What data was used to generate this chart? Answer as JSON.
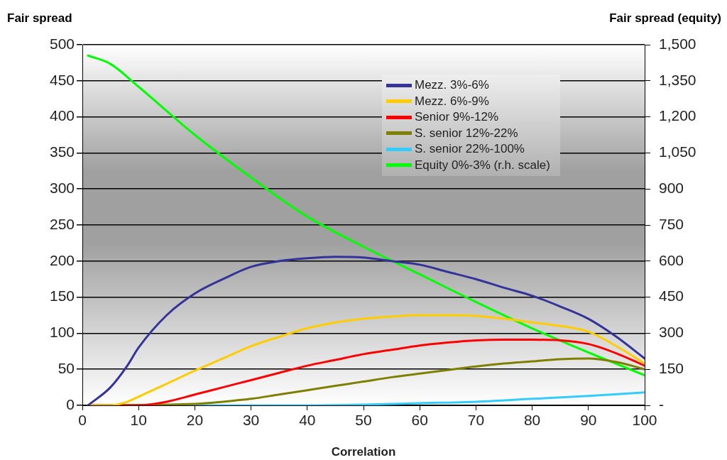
{
  "chart_data": {
    "type": "line",
    "xlabel": "Correlation",
    "ylabel": "Fair spread",
    "y2label": "Fair spread (equity)",
    "xlim": [
      0,
      100
    ],
    "xticks": [
      0,
      10,
      20,
      30,
      40,
      50,
      60,
      70,
      80,
      90,
      100
    ],
    "ylim": [
      0,
      500
    ],
    "yticks": [
      0,
      50,
      100,
      150,
      200,
      250,
      300,
      350,
      400,
      450,
      500
    ],
    "y2lim": [
      0,
      1500
    ],
    "y2ticks": [
      {
        "value": 0,
        "label": "-"
      },
      {
        "value": 150,
        "label": "150"
      },
      {
        "value": 300,
        "label": "300"
      },
      {
        "value": 450,
        "label": "450"
      },
      {
        "value": 600,
        "label": "600"
      },
      {
        "value": 750,
        "label": "750"
      },
      {
        "value": 900,
        "label": "900"
      },
      {
        "value": 1050,
        "label": "1,050"
      },
      {
        "value": 1200,
        "label": "1,200"
      },
      {
        "value": 1350,
        "label": "1,350"
      },
      {
        "value": 1500,
        "label": "1,500"
      }
    ],
    "grid": "y",
    "legend": "top right",
    "marker": "none",
    "line_style": "solid",
    "series": [
      {
        "name": "Mezz. 3%-6%",
        "color": "#333399",
        "x": [
          1,
          5,
          8,
          10,
          15,
          20,
          25,
          30,
          35,
          40,
          45,
          50,
          55,
          60,
          65,
          70,
          75,
          80,
          85,
          90,
          95,
          100
        ],
        "values": [
          0,
          25,
          55,
          80,
          125,
          155,
          175,
          192,
          200,
          204,
          206,
          205,
          200,
          195,
          185,
          175,
          163,
          152,
          137,
          120,
          95,
          65
        ]
      },
      {
        "name": "Mezz. 6%-9%",
        "color": "#ffcc00",
        "x": [
          1,
          5,
          8,
          10,
          15,
          20,
          25,
          30,
          35,
          40,
          45,
          50,
          55,
          60,
          65,
          70,
          75,
          80,
          85,
          90,
          95,
          100
        ],
        "values": [
          0,
          0,
          5,
          12,
          30,
          48,
          65,
          82,
          95,
          107,
          115,
          120,
          123,
          125,
          125,
          124,
          120,
          115,
          110,
          102,
          82,
          58
        ]
      },
      {
        "name": "Senior 9%-12%",
        "color": "#ff0000",
        "x": [
          1,
          10,
          15,
          20,
          25,
          30,
          35,
          40,
          45,
          50,
          55,
          60,
          65,
          70,
          75,
          80,
          85,
          90,
          95,
          100
        ],
        "values": [
          0,
          0,
          5,
          15,
          25,
          35,
          45,
          55,
          63,
          71,
          77,
          83,
          87,
          90,
          91,
          91,
          90,
          85,
          72,
          55
        ]
      },
      {
        "name": "S. senior 12%-22%",
        "color": "#808000",
        "x": [
          1,
          20,
          25,
          30,
          35,
          40,
          45,
          50,
          55,
          60,
          65,
          70,
          75,
          80,
          85,
          90,
          95,
          100
        ],
        "values": [
          0,
          2,
          5,
          9,
          15,
          21,
          27,
          33,
          39,
          44,
          49,
          54,
          58,
          61,
          64,
          65,
          60,
          50
        ]
      },
      {
        "name": "S. senior 22%-100%",
        "color": "#33ccff",
        "x": [
          1,
          30,
          40,
          50,
          60,
          70,
          80,
          90,
          100
        ],
        "values": [
          0,
          0,
          0,
          1,
          3,
          5,
          9,
          13,
          18
        ]
      },
      {
        "name": "Equity 0%-3% (r.h. scale)",
        "color": "#00ff00",
        "axis": "y2",
        "x": [
          1,
          5,
          10,
          20,
          30,
          40,
          50,
          60,
          70,
          80,
          90,
          100
        ],
        "values": [
          1455,
          1420,
          1325,
          1125,
          948,
          785,
          660,
          545,
          430,
          320,
          220,
          125
        ]
      }
    ]
  }
}
